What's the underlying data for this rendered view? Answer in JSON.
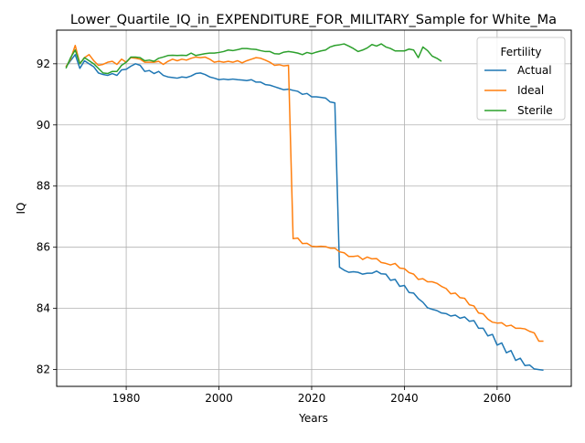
{
  "chart_data": {
    "type": "line",
    "title": "Lower_Quartile_IQ_in_EXPENDITURE_FOR_MILITARY_Sample for White_Ma",
    "xlabel": "Years",
    "ylabel": "IQ",
    "xlim": [
      1965,
      2076
    ],
    "ylim": [
      81.45,
      93.1
    ],
    "x_ticks": [
      1980,
      2000,
      2020,
      2040,
      2060
    ],
    "y_ticks": [
      82,
      84,
      86,
      88,
      90,
      92
    ],
    "grid": true,
    "legend": {
      "title": "Fertility",
      "position": "top-right"
    },
    "series": [
      {
        "name": "Actual",
        "color": "#1f77b4",
        "points": [
          [
            1967,
            91.9
          ],
          [
            1968,
            92.1
          ],
          [
            1969,
            92.3
          ],
          [
            1970,
            91.85
          ],
          [
            1971,
            92.1
          ],
          [
            1972,
            92.0
          ],
          [
            1973,
            91.9
          ],
          [
            1974,
            91.7
          ],
          [
            1975,
            91.65
          ],
          [
            1976,
            91.62
          ],
          [
            1977,
            91.68
          ],
          [
            1978,
            91.62
          ],
          [
            1979,
            91.8
          ],
          [
            1980,
            91.82
          ],
          [
            1981,
            91.92
          ],
          [
            1982,
            92.0
          ],
          [
            1983,
            91.95
          ],
          [
            1984,
            91.75
          ],
          [
            1985,
            91.78
          ],
          [
            1986,
            91.68
          ],
          [
            1987,
            91.75
          ],
          [
            1988,
            91.62
          ],
          [
            1989,
            91.57
          ],
          [
            1990,
            91.55
          ],
          [
            1991,
            91.53
          ],
          [
            1992,
            91.57
          ],
          [
            1993,
            91.55
          ],
          [
            1994,
            91.6
          ],
          [
            1995,
            91.68
          ],
          [
            1996,
            91.7
          ],
          [
            1997,
            91.65
          ],
          [
            1998,
            91.57
          ],
          [
            1999,
            91.53
          ],
          [
            2000,
            91.48
          ],
          [
            2001,
            91.5
          ],
          [
            2002,
            91.48
          ],
          [
            2003,
            91.5
          ],
          [
            2004,
            91.48
          ],
          [
            2005,
            91.47
          ],
          [
            2006,
            91.45
          ],
          [
            2007,
            91.48
          ],
          [
            2008,
            91.4
          ],
          [
            2009,
            91.4
          ],
          [
            2010,
            91.32
          ],
          [
            2011,
            91.3
          ],
          [
            2012,
            91.25
          ],
          [
            2013,
            91.2
          ],
          [
            2014,
            91.15
          ],
          [
            2015,
            91.17
          ],
          [
            2016,
            91.13
          ],
          [
            2017,
            91.1
          ],
          [
            2018,
            91.0
          ],
          [
            2019,
            91.03
          ],
          [
            2020,
            90.92
          ],
          [
            2021,
            90.92
          ],
          [
            2022,
            90.9
          ],
          [
            2023,
            90.88
          ],
          [
            2024,
            90.75
          ],
          [
            2025,
            90.72
          ],
          [
            2026,
            85.35
          ],
          [
            2027,
            85.25
          ],
          [
            2028,
            85.18
          ],
          [
            2029,
            85.2
          ],
          [
            2030,
            85.18
          ],
          [
            2031,
            85.12
          ],
          [
            2032,
            85.15
          ],
          [
            2033,
            85.15
          ],
          [
            2034,
            85.22
          ],
          [
            2035,
            85.13
          ],
          [
            2036,
            85.12
          ],
          [
            2037,
            84.92
          ],
          [
            2038,
            84.95
          ],
          [
            2039,
            84.72
          ],
          [
            2040,
            84.75
          ],
          [
            2041,
            84.52
          ],
          [
            2042,
            84.5
          ],
          [
            2043,
            84.32
          ],
          [
            2044,
            84.2
          ],
          [
            2045,
            84.02
          ],
          [
            2046,
            83.97
          ],
          [
            2047,
            83.93
          ],
          [
            2048,
            83.85
          ],
          [
            2049,
            83.83
          ],
          [
            2050,
            83.75
          ],
          [
            2051,
            83.78
          ],
          [
            2052,
            83.68
          ],
          [
            2053,
            83.72
          ],
          [
            2054,
            83.58
          ],
          [
            2055,
            83.6
          ],
          [
            2056,
            83.35
          ],
          [
            2057,
            83.35
          ],
          [
            2058,
            83.1
          ],
          [
            2059,
            83.15
          ],
          [
            2060,
            82.8
          ],
          [
            2061,
            82.87
          ],
          [
            2062,
            82.55
          ],
          [
            2063,
            82.62
          ],
          [
            2064,
            82.3
          ],
          [
            2065,
            82.37
          ],
          [
            2066,
            82.13
          ],
          [
            2067,
            82.15
          ],
          [
            2068,
            82.02
          ],
          [
            2069,
            82.0
          ],
          [
            2070,
            81.98
          ]
        ]
      },
      {
        "name": "Ideal",
        "color": "#ff7f0e",
        "points": [
          [
            1967,
            91.9
          ],
          [
            1968,
            92.15
          ],
          [
            1969,
            92.6
          ],
          [
            1970,
            92.0
          ],
          [
            1971,
            92.2
          ],
          [
            1972,
            92.3
          ],
          [
            1973,
            92.1
          ],
          [
            1974,
            91.95
          ],
          [
            1975,
            91.98
          ],
          [
            1976,
            92.05
          ],
          [
            1977,
            92.08
          ],
          [
            1978,
            91.98
          ],
          [
            1979,
            92.15
          ],
          [
            1980,
            92.05
          ],
          [
            1981,
            92.2
          ],
          [
            1982,
            92.18
          ],
          [
            1983,
            92.15
          ],
          [
            1984,
            92.05
          ],
          [
            1985,
            92.05
          ],
          [
            1986,
            92.05
          ],
          [
            1987,
            92.08
          ],
          [
            1988,
            91.98
          ],
          [
            1989,
            92.08
          ],
          [
            1990,
            92.15
          ],
          [
            1991,
            92.1
          ],
          [
            1992,
            92.15
          ],
          [
            1993,
            92.12
          ],
          [
            1994,
            92.18
          ],
          [
            1995,
            92.22
          ],
          [
            1996,
            92.2
          ],
          [
            1997,
            92.22
          ],
          [
            1998,
            92.15
          ],
          [
            1999,
            92.05
          ],
          [
            2000,
            92.08
          ],
          [
            2001,
            92.05
          ],
          [
            2002,
            92.08
          ],
          [
            2003,
            92.05
          ],
          [
            2004,
            92.1
          ],
          [
            2005,
            92.03
          ],
          [
            2006,
            92.1
          ],
          [
            2007,
            92.15
          ],
          [
            2008,
            92.2
          ],
          [
            2009,
            92.18
          ],
          [
            2010,
            92.12
          ],
          [
            2011,
            92.05
          ],
          [
            2012,
            91.95
          ],
          [
            2013,
            91.97
          ],
          [
            2014,
            91.93
          ],
          [
            2015,
            91.95
          ],
          [
            2016,
            86.28
          ],
          [
            2017,
            86.3
          ],
          [
            2018,
            86.12
          ],
          [
            2019,
            86.13
          ],
          [
            2020,
            86.03
          ],
          [
            2021,
            86.02
          ],
          [
            2022,
            86.03
          ],
          [
            2023,
            86.02
          ],
          [
            2024,
            85.97
          ],
          [
            2025,
            85.97
          ],
          [
            2026,
            85.85
          ],
          [
            2027,
            85.82
          ],
          [
            2028,
            85.7
          ],
          [
            2029,
            85.7
          ],
          [
            2030,
            85.72
          ],
          [
            2031,
            85.6
          ],
          [
            2032,
            85.68
          ],
          [
            2033,
            85.62
          ],
          [
            2034,
            85.63
          ],
          [
            2035,
            85.5
          ],
          [
            2036,
            85.47
          ],
          [
            2037,
            85.42
          ],
          [
            2038,
            85.47
          ],
          [
            2039,
            85.32
          ],
          [
            2040,
            85.3
          ],
          [
            2041,
            85.17
          ],
          [
            2042,
            85.12
          ],
          [
            2043,
            84.95
          ],
          [
            2044,
            84.97
          ],
          [
            2045,
            84.87
          ],
          [
            2046,
            84.87
          ],
          [
            2047,
            84.82
          ],
          [
            2048,
            84.72
          ],
          [
            2049,
            84.65
          ],
          [
            2050,
            84.48
          ],
          [
            2051,
            84.5
          ],
          [
            2052,
            84.35
          ],
          [
            2053,
            84.33
          ],
          [
            2054,
            84.12
          ],
          [
            2055,
            84.08
          ],
          [
            2056,
            83.85
          ],
          [
            2057,
            83.82
          ],
          [
            2058,
            83.65
          ],
          [
            2059,
            83.55
          ],
          [
            2060,
            83.52
          ],
          [
            2061,
            83.53
          ],
          [
            2062,
            83.42
          ],
          [
            2063,
            83.45
          ],
          [
            2064,
            83.35
          ],
          [
            2065,
            83.35
          ],
          [
            2066,
            83.33
          ],
          [
            2067,
            83.25
          ],
          [
            2068,
            83.2
          ],
          [
            2069,
            82.93
          ],
          [
            2070,
            82.93
          ]
        ]
      },
      {
        "name": "Sterile",
        "color": "#2ca02c",
        "points": [
          [
            1967,
            91.85
          ],
          [
            1968,
            92.2
          ],
          [
            1969,
            92.45
          ],
          [
            1970,
            92.0
          ],
          [
            1971,
            92.2
          ],
          [
            1972,
            92.1
          ],
          [
            1973,
            92.0
          ],
          [
            1974,
            91.85
          ],
          [
            1975,
            91.7
          ],
          [
            1976,
            91.68
          ],
          [
            1977,
            91.75
          ],
          [
            1978,
            91.75
          ],
          [
            1979,
            91.95
          ],
          [
            1980,
            92.05
          ],
          [
            1981,
            92.22
          ],
          [
            1982,
            92.22
          ],
          [
            1983,
            92.2
          ],
          [
            1984,
            92.1
          ],
          [
            1985,
            92.12
          ],
          [
            1986,
            92.08
          ],
          [
            1987,
            92.18
          ],
          [
            1988,
            92.22
          ],
          [
            1989,
            92.27
          ],
          [
            1990,
            92.28
          ],
          [
            1991,
            92.27
          ],
          [
            1992,
            92.28
          ],
          [
            1993,
            92.27
          ],
          [
            1994,
            92.35
          ],
          [
            1995,
            92.27
          ],
          [
            1996,
            92.3
          ],
          [
            1997,
            92.33
          ],
          [
            1998,
            92.35
          ],
          [
            1999,
            92.35
          ],
          [
            2000,
            92.37
          ],
          [
            2001,
            92.4
          ],
          [
            2002,
            92.45
          ],
          [
            2003,
            92.43
          ],
          [
            2004,
            92.46
          ],
          [
            2005,
            92.5
          ],
          [
            2006,
            92.5
          ],
          [
            2007,
            92.48
          ],
          [
            2008,
            92.47
          ],
          [
            2009,
            92.43
          ],
          [
            2010,
            92.4
          ],
          [
            2011,
            92.4
          ],
          [
            2012,
            92.33
          ],
          [
            2013,
            92.32
          ],
          [
            2014,
            92.38
          ],
          [
            2015,
            92.4
          ],
          [
            2016,
            92.38
          ],
          [
            2017,
            92.35
          ],
          [
            2018,
            92.3
          ],
          [
            2019,
            92.37
          ],
          [
            2020,
            92.33
          ],
          [
            2021,
            92.38
          ],
          [
            2022,
            92.42
          ],
          [
            2023,
            92.45
          ],
          [
            2024,
            92.55
          ],
          [
            2025,
            92.6
          ],
          [
            2026,
            92.62
          ],
          [
            2027,
            92.65
          ],
          [
            2028,
            92.58
          ],
          [
            2029,
            92.5
          ],
          [
            2030,
            92.4
          ],
          [
            2031,
            92.45
          ],
          [
            2032,
            92.52
          ],
          [
            2033,
            92.63
          ],
          [
            2034,
            92.58
          ],
          [
            2035,
            92.65
          ],
          [
            2036,
            92.55
          ],
          [
            2037,
            92.5
          ],
          [
            2038,
            92.42
          ],
          [
            2039,
            92.42
          ],
          [
            2040,
            92.42
          ],
          [
            2041,
            92.48
          ],
          [
            2042,
            92.45
          ],
          [
            2043,
            92.2
          ],
          [
            2044,
            92.55
          ],
          [
            2045,
            92.43
          ],
          [
            2046,
            92.25
          ],
          [
            2047,
            92.18
          ],
          [
            2048,
            92.08
          ]
        ]
      }
    ]
  }
}
